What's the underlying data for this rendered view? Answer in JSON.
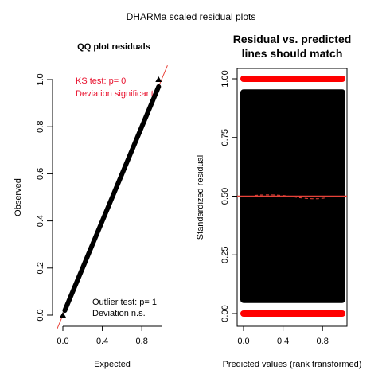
{
  "figure": {
    "title": "DHARMa scaled residual plots"
  },
  "chart_data": [
    {
      "type": "scatter",
      "title": "QQ plot residuals",
      "xlabel": "Expected",
      "ylabel": "Observed",
      "xlim": [
        0,
        1
      ],
      "ylim": [
        0,
        1
      ],
      "x_ticks": [
        0.0,
        0.4,
        0.8
      ],
      "x_tick_labels": [
        "0.0",
        "0.4",
        "0.8"
      ],
      "y_ticks": [
        0.0,
        0.2,
        0.4,
        0.6,
        0.8,
        1.0
      ],
      "y_tick_labels": [
        "0.0",
        "0.2",
        "0.4",
        "0.6",
        "0.8",
        "1.0"
      ],
      "reference_line": {
        "slope": 1,
        "intercept": 0,
        "color": "#e8433a"
      },
      "series": [
        {
          "values": "dense points along the 1:1 line from (0,0) to (1,1)",
          "color": "#000000"
        }
      ],
      "tail_markers": [
        {
          "x": 0.0,
          "y": 0.0
        },
        {
          "x": 0.97,
          "y": 1.0
        }
      ],
      "annotations": {
        "ks_test": "KS test: p= 0",
        "ks_deviation": "Deviation  significant",
        "outlier_test": "Outlier test: p= 1",
        "outlier_deviation": "Deviation  n.s."
      },
      "colors": {
        "significant": "#e8112d"
      },
      "grid": false,
      "legend": "none"
    },
    {
      "type": "scatter",
      "title_line1": "Residual vs. predicted",
      "title_line2": "lines should match",
      "xlabel": "Predicted values (rank transformed)",
      "ylabel": "Standardized residual",
      "xlim": [
        0,
        1
      ],
      "ylim": [
        0,
        1
      ],
      "x_ticks": [
        0.0,
        0.4,
        0.8
      ],
      "x_tick_labels": [
        "0.0",
        "0.4",
        "0.8"
      ],
      "y_ticks": [
        0.0,
        0.25,
        0.5,
        0.75,
        1.0
      ],
      "y_tick_labels": [
        "0.00",
        "0.25",
        "0.50",
        "0.75",
        "1.00"
      ],
      "series": [
        {
          "values": "dense points covering x 0–1, y 0–1",
          "color": "#000000"
        },
        {
          "values": "outliers at y = 0 and y = 1 across all x",
          "color": "#ff0000"
        }
      ],
      "quantile_lines": [
        0.5
      ],
      "colors": {
        "outlier": "#ff0000",
        "quantile": "#e8433a"
      },
      "grid": false,
      "legend": "none"
    }
  ]
}
